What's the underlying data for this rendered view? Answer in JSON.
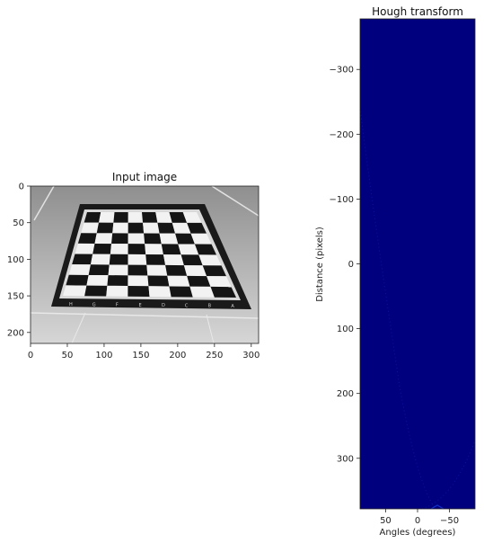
{
  "chart_data": [
    {
      "type": "image",
      "title": "Input image",
      "image_description": "grayscale photo of a chessboard on a floor",
      "xlim": [
        0,
        310
      ],
      "ylim": [
        215,
        0
      ],
      "x_ticks": [
        0,
        50,
        100,
        150,
        200,
        250,
        300
      ],
      "y_ticks": [
        0,
        50,
        100,
        150,
        200
      ],
      "board_files": [
        "H",
        "G",
        "F",
        "E",
        "D",
        "C",
        "B",
        "A"
      ],
      "colormap": "gray"
    },
    {
      "type": "heatmap",
      "title": "Hough transform",
      "xlabel": "Angles (degrees)",
      "ylabel": "Distance (pixels)",
      "xlim": [
        90,
        -90
      ],
      "ylim": [
        378,
        -378
      ],
      "x_ticks": [
        50,
        0,
        -50
      ],
      "x_tick_labels": [
        "50",
        "0",
        "−50"
      ],
      "y_ticks": [
        -300,
        -200,
        -100,
        0,
        100,
        200,
        300
      ],
      "y_tick_labels": [
        "−300",
        "−200",
        "−100",
        "0",
        "100",
        "200",
        "300"
      ],
      "colormap": "jet",
      "background_color": "#00007f"
    }
  ]
}
